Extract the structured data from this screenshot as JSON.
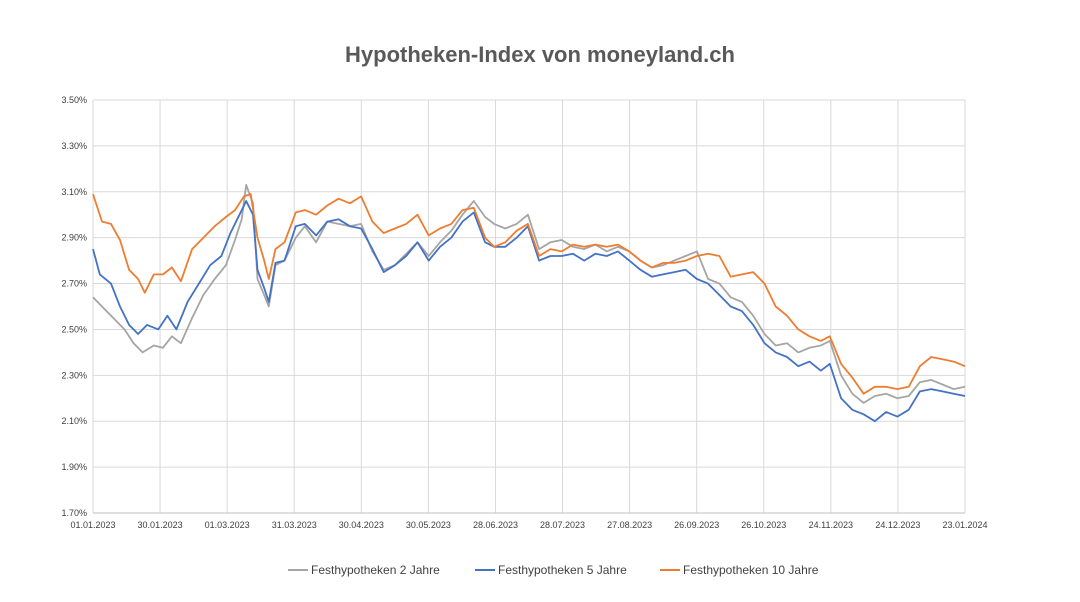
{
  "chart_data": {
    "type": "line",
    "title": "Hypotheken-Index von moneyland.ch",
    "xlabel": "",
    "ylabel": "",
    "x_tick_labels": [
      "01.01.2023",
      "30.01.2023",
      "01.03.2023",
      "31.03.2023",
      "30.04.2023",
      "30.05.2023",
      "28.06.2023",
      "28.07.2023",
      "27.08.2023",
      "26.09.2023",
      "26.10.2023",
      "24.11.2023",
      "24.12.2023",
      "23.01.2024"
    ],
    "y_tick_labels": [
      "1.70%",
      "1.90%",
      "2.10%",
      "2.30%",
      "2.50%",
      "2.70%",
      "2.90%",
      "3.10%",
      "3.30%",
      "3.50%"
    ],
    "xlim": [
      "2023-01-01",
      "2024-01-23"
    ],
    "ylim": [
      1.7,
      3.5
    ],
    "grid": true,
    "legend_position": "bottom",
    "series": [
      {
        "name": "Festhypotheken 2 Jahre",
        "color": "#a5a5a5",
        "points": [
          [
            "2023-01-01",
            2.64
          ],
          [
            "2023-01-05",
            2.6
          ],
          [
            "2023-01-10",
            2.55
          ],
          [
            "2023-01-15",
            2.5
          ],
          [
            "2023-01-19",
            2.44
          ],
          [
            "2023-01-23",
            2.4
          ],
          [
            "2023-01-28",
            2.43
          ],
          [
            "2023-02-01",
            2.42
          ],
          [
            "2023-02-05",
            2.47
          ],
          [
            "2023-02-09",
            2.44
          ],
          [
            "2023-02-14",
            2.55
          ],
          [
            "2023-02-19",
            2.65
          ],
          [
            "2023-02-24",
            2.72
          ],
          [
            "2023-03-01",
            2.78
          ],
          [
            "2023-03-05",
            2.89
          ],
          [
            "2023-03-08",
            2.98
          ],
          [
            "2023-03-10",
            3.13
          ],
          [
            "2023-03-13",
            3.05
          ],
          [
            "2023-03-15",
            2.72
          ],
          [
            "2023-03-18",
            2.65
          ],
          [
            "2023-03-20",
            2.6
          ],
          [
            "2023-03-23",
            2.78
          ],
          [
            "2023-03-27",
            2.8
          ],
          [
            "2023-04-01",
            2.9
          ],
          [
            "2023-04-05",
            2.95
          ],
          [
            "2023-04-10",
            2.88
          ],
          [
            "2023-04-15",
            2.97
          ],
          [
            "2023-04-20",
            2.96
          ],
          [
            "2023-04-25",
            2.95
          ],
          [
            "2023-04-30",
            2.96
          ],
          [
            "2023-05-05",
            2.84
          ],
          [
            "2023-05-10",
            2.76
          ],
          [
            "2023-05-15",
            2.78
          ],
          [
            "2023-05-20",
            2.83
          ],
          [
            "2023-05-25",
            2.88
          ],
          [
            "2023-05-30",
            2.82
          ],
          [
            "2023-06-04",
            2.88
          ],
          [
            "2023-06-09",
            2.93
          ],
          [
            "2023-06-14",
            3.0
          ],
          [
            "2023-06-19",
            3.06
          ],
          [
            "2023-06-24",
            2.99
          ],
          [
            "2023-06-28",
            2.96
          ],
          [
            "2023-07-03",
            2.94
          ],
          [
            "2023-07-08",
            2.96
          ],
          [
            "2023-07-13",
            3.0
          ],
          [
            "2023-07-18",
            2.85
          ],
          [
            "2023-07-23",
            2.88
          ],
          [
            "2023-07-28",
            2.89
          ],
          [
            "2023-08-02",
            2.86
          ],
          [
            "2023-08-07",
            2.85
          ],
          [
            "2023-08-12",
            2.87
          ],
          [
            "2023-08-17",
            2.84
          ],
          [
            "2023-08-22",
            2.86
          ],
          [
            "2023-08-27",
            2.84
          ],
          [
            "2023-09-01",
            2.8
          ],
          [
            "2023-09-06",
            2.77
          ],
          [
            "2023-09-11",
            2.78
          ],
          [
            "2023-09-16",
            2.8
          ],
          [
            "2023-09-21",
            2.82
          ],
          [
            "2023-09-26",
            2.84
          ],
          [
            "2023-10-01",
            2.72
          ],
          [
            "2023-10-06",
            2.7
          ],
          [
            "2023-10-11",
            2.64
          ],
          [
            "2023-10-16",
            2.62
          ],
          [
            "2023-10-21",
            2.56
          ],
          [
            "2023-10-26",
            2.48
          ],
          [
            "2023-10-31",
            2.43
          ],
          [
            "2023-11-05",
            2.44
          ],
          [
            "2023-11-10",
            2.4
          ],
          [
            "2023-11-15",
            2.42
          ],
          [
            "2023-11-20",
            2.43
          ],
          [
            "2023-11-24",
            2.45
          ],
          [
            "2023-11-29",
            2.3
          ],
          [
            "2023-12-04",
            2.22
          ],
          [
            "2023-12-09",
            2.18
          ],
          [
            "2023-12-14",
            2.21
          ],
          [
            "2023-12-19",
            2.22
          ],
          [
            "2023-12-24",
            2.2
          ],
          [
            "2023-12-29",
            2.21
          ],
          [
            "2024-01-03",
            2.27
          ],
          [
            "2024-01-08",
            2.28
          ],
          [
            "2024-01-13",
            2.26
          ],
          [
            "2024-01-18",
            2.24
          ],
          [
            "2024-01-23",
            2.25
          ]
        ]
      },
      {
        "name": "Festhypotheken 5 Jahre",
        "color": "#4472c4",
        "points": [
          [
            "2023-01-01",
            2.85
          ],
          [
            "2023-01-04",
            2.74
          ],
          [
            "2023-01-09",
            2.7
          ],
          [
            "2023-01-13",
            2.6
          ],
          [
            "2023-01-17",
            2.52
          ],
          [
            "2023-01-21",
            2.48
          ],
          [
            "2023-01-25",
            2.52
          ],
          [
            "2023-01-30",
            2.5
          ],
          [
            "2023-02-03",
            2.56
          ],
          [
            "2023-02-07",
            2.5
          ],
          [
            "2023-02-12",
            2.62
          ],
          [
            "2023-02-17",
            2.7
          ],
          [
            "2023-02-22",
            2.78
          ],
          [
            "2023-02-27",
            2.82
          ],
          [
            "2023-03-03",
            2.92
          ],
          [
            "2023-03-07",
            3.0
          ],
          [
            "2023-03-10",
            3.06
          ],
          [
            "2023-03-13",
            3.0
          ],
          [
            "2023-03-15",
            2.76
          ],
          [
            "2023-03-18",
            2.68
          ],
          [
            "2023-03-20",
            2.62
          ],
          [
            "2023-03-23",
            2.79
          ],
          [
            "2023-03-27",
            2.8
          ],
          [
            "2023-04-01",
            2.95
          ],
          [
            "2023-04-05",
            2.96
          ],
          [
            "2023-04-10",
            2.91
          ],
          [
            "2023-04-15",
            2.97
          ],
          [
            "2023-04-20",
            2.98
          ],
          [
            "2023-04-25",
            2.95
          ],
          [
            "2023-04-30",
            2.94
          ],
          [
            "2023-05-05",
            2.85
          ],
          [
            "2023-05-10",
            2.75
          ],
          [
            "2023-05-15",
            2.78
          ],
          [
            "2023-05-20",
            2.82
          ],
          [
            "2023-05-25",
            2.88
          ],
          [
            "2023-05-30",
            2.8
          ],
          [
            "2023-06-04",
            2.86
          ],
          [
            "2023-06-09",
            2.9
          ],
          [
            "2023-06-14",
            2.97
          ],
          [
            "2023-06-19",
            3.01
          ],
          [
            "2023-06-24",
            2.88
          ],
          [
            "2023-06-28",
            2.86
          ],
          [
            "2023-07-03",
            2.86
          ],
          [
            "2023-07-08",
            2.9
          ],
          [
            "2023-07-13",
            2.95
          ],
          [
            "2023-07-18",
            2.8
          ],
          [
            "2023-07-23",
            2.82
          ],
          [
            "2023-07-28",
            2.82
          ],
          [
            "2023-08-02",
            2.83
          ],
          [
            "2023-08-07",
            2.8
          ],
          [
            "2023-08-12",
            2.83
          ],
          [
            "2023-08-17",
            2.82
          ],
          [
            "2023-08-22",
            2.84
          ],
          [
            "2023-08-27",
            2.8
          ],
          [
            "2023-09-01",
            2.76
          ],
          [
            "2023-09-06",
            2.73
          ],
          [
            "2023-09-11",
            2.74
          ],
          [
            "2023-09-16",
            2.75
          ],
          [
            "2023-09-21",
            2.76
          ],
          [
            "2023-09-26",
            2.72
          ],
          [
            "2023-10-01",
            2.7
          ],
          [
            "2023-10-06",
            2.65
          ],
          [
            "2023-10-11",
            2.6
          ],
          [
            "2023-10-16",
            2.58
          ],
          [
            "2023-10-21",
            2.52
          ],
          [
            "2023-10-26",
            2.44
          ],
          [
            "2023-10-31",
            2.4
          ],
          [
            "2023-11-05",
            2.38
          ],
          [
            "2023-11-10",
            2.34
          ],
          [
            "2023-11-15",
            2.36
          ],
          [
            "2023-11-20",
            2.32
          ],
          [
            "2023-11-24",
            2.35
          ],
          [
            "2023-11-29",
            2.2
          ],
          [
            "2023-12-04",
            2.15
          ],
          [
            "2023-12-09",
            2.13
          ],
          [
            "2023-12-14",
            2.1
          ],
          [
            "2023-12-19",
            2.14
          ],
          [
            "2023-12-24",
            2.12
          ],
          [
            "2023-12-29",
            2.15
          ],
          [
            "2024-01-03",
            2.23
          ],
          [
            "2024-01-08",
            2.24
          ],
          [
            "2024-01-13",
            2.23
          ],
          [
            "2024-01-18",
            2.22
          ],
          [
            "2024-01-23",
            2.21
          ]
        ]
      },
      {
        "name": "Festhypotheken 10 Jahre",
        "color": "#ed7d31",
        "points": [
          [
            "2023-01-01",
            3.09
          ],
          [
            "2023-01-05",
            2.97
          ],
          [
            "2023-01-09",
            2.96
          ],
          [
            "2023-01-13",
            2.89
          ],
          [
            "2023-01-17",
            2.76
          ],
          [
            "2023-01-21",
            2.72
          ],
          [
            "2023-01-24",
            2.66
          ],
          [
            "2023-01-28",
            2.74
          ],
          [
            "2023-02-01",
            2.74
          ],
          [
            "2023-02-05",
            2.77
          ],
          [
            "2023-02-09",
            2.71
          ],
          [
            "2023-02-14",
            2.85
          ],
          [
            "2023-02-19",
            2.9
          ],
          [
            "2023-02-24",
            2.95
          ],
          [
            "2023-03-01",
            2.99
          ],
          [
            "2023-03-05",
            3.02
          ],
          [
            "2023-03-09",
            3.08
          ],
          [
            "2023-03-12",
            3.09
          ],
          [
            "2023-03-15",
            2.9
          ],
          [
            "2023-03-18",
            2.8
          ],
          [
            "2023-03-20",
            2.72
          ],
          [
            "2023-03-23",
            2.85
          ],
          [
            "2023-03-27",
            2.88
          ],
          [
            "2023-04-01",
            3.01
          ],
          [
            "2023-04-05",
            3.02
          ],
          [
            "2023-04-10",
            3.0
          ],
          [
            "2023-04-15",
            3.04
          ],
          [
            "2023-04-20",
            3.07
          ],
          [
            "2023-04-25",
            3.05
          ],
          [
            "2023-04-30",
            3.08
          ],
          [
            "2023-05-05",
            2.97
          ],
          [
            "2023-05-10",
            2.92
          ],
          [
            "2023-05-15",
            2.94
          ],
          [
            "2023-05-20",
            2.96
          ],
          [
            "2023-05-25",
            3.0
          ],
          [
            "2023-05-30",
            2.91
          ],
          [
            "2023-06-04",
            2.94
          ],
          [
            "2023-06-09",
            2.96
          ],
          [
            "2023-06-14",
            3.02
          ],
          [
            "2023-06-19",
            3.03
          ],
          [
            "2023-06-24",
            2.9
          ],
          [
            "2023-06-28",
            2.86
          ],
          [
            "2023-07-03",
            2.88
          ],
          [
            "2023-07-08",
            2.93
          ],
          [
            "2023-07-13",
            2.96
          ],
          [
            "2023-07-18",
            2.82
          ],
          [
            "2023-07-23",
            2.85
          ],
          [
            "2023-07-28",
            2.84
          ],
          [
            "2023-08-02",
            2.87
          ],
          [
            "2023-08-07",
            2.86
          ],
          [
            "2023-08-12",
            2.87
          ],
          [
            "2023-08-17",
            2.86
          ],
          [
            "2023-08-22",
            2.87
          ],
          [
            "2023-08-27",
            2.84
          ],
          [
            "2023-09-01",
            2.8
          ],
          [
            "2023-09-06",
            2.77
          ],
          [
            "2023-09-11",
            2.79
          ],
          [
            "2023-09-16",
            2.79
          ],
          [
            "2023-09-21",
            2.8
          ],
          [
            "2023-09-26",
            2.82
          ],
          [
            "2023-10-01",
            2.83
          ],
          [
            "2023-10-06",
            2.82
          ],
          [
            "2023-10-11",
            2.73
          ],
          [
            "2023-10-16",
            2.74
          ],
          [
            "2023-10-21",
            2.75
          ],
          [
            "2023-10-26",
            2.7
          ],
          [
            "2023-10-31",
            2.6
          ],
          [
            "2023-11-05",
            2.56
          ],
          [
            "2023-11-10",
            2.5
          ],
          [
            "2023-11-15",
            2.47
          ],
          [
            "2023-11-20",
            2.45
          ],
          [
            "2023-11-24",
            2.47
          ],
          [
            "2023-11-29",
            2.35
          ],
          [
            "2023-12-04",
            2.29
          ],
          [
            "2023-12-09",
            2.22
          ],
          [
            "2023-12-14",
            2.25
          ],
          [
            "2023-12-19",
            2.25
          ],
          [
            "2023-12-24",
            2.24
          ],
          [
            "2023-12-29",
            2.25
          ],
          [
            "2024-01-03",
            2.34
          ],
          [
            "2024-01-08",
            2.38
          ],
          [
            "2024-01-13",
            2.37
          ],
          [
            "2024-01-18",
            2.36
          ],
          [
            "2024-01-23",
            2.34
          ]
        ]
      }
    ]
  }
}
